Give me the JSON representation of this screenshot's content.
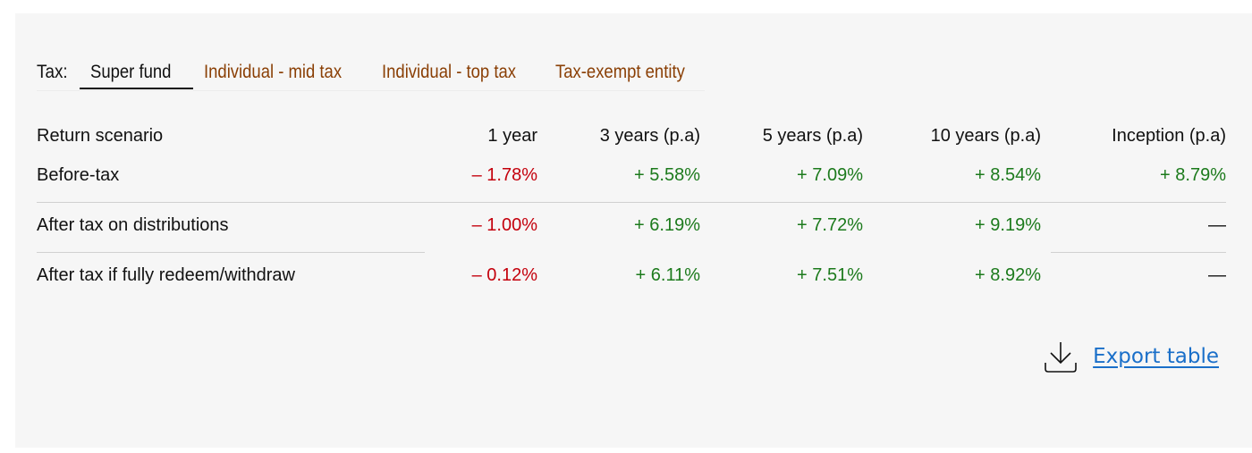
{
  "tax": {
    "label": "Tax:",
    "tabs": [
      {
        "label": "Super fund",
        "active": true
      },
      {
        "label": "Individual - mid tax",
        "active": false
      },
      {
        "label": "Individual - top tax",
        "active": false
      },
      {
        "label": "Tax-exempt entity",
        "active": false
      }
    ]
  },
  "table": {
    "headers": [
      "Return scenario",
      "1 year",
      "3 years (p.a)",
      "5 years (p.a)",
      "10 years (p.a)",
      "Inception (p.a)"
    ],
    "rows": [
      {
        "label": "Before-tax",
        "values": [
          "– 1.78%",
          "+ 5.58%",
          "+ 7.09%",
          "+ 8.54%",
          "+ 8.79%"
        ]
      },
      {
        "label": "After tax on distributions",
        "values": [
          "– 1.00%",
          "+ 6.19%",
          "+ 7.72%",
          "+ 9.19%",
          "—"
        ]
      },
      {
        "label": "After tax if fully redeem/withdraw",
        "values": [
          "– 0.12%",
          "+ 6.11%",
          "+ 7.51%",
          "+ 8.92%",
          "—"
        ]
      }
    ]
  },
  "export": {
    "label": "Export table",
    "icon": "download-icon"
  },
  "colors": {
    "negative": "#c4000c",
    "positive": "#1c7a1c",
    "tab_inactive": "#8a3f05",
    "link": "#1a6fc9"
  }
}
